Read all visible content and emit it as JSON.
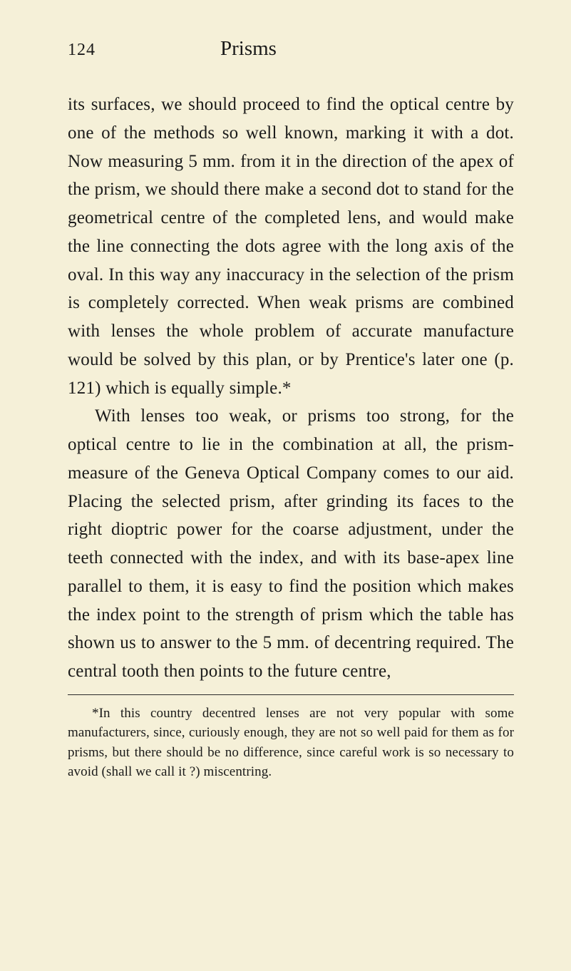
{
  "header": {
    "pageNumber": "124",
    "title": "Prisms"
  },
  "paragraphs": {
    "p1": "its surfaces, we should proceed to find the optical centre by one of the methods so well known, marking it with a dot. Now measuring 5 mm. from it in the direction of the apex of the prism, we should there make a second dot to stand for the geometrical centre of the completed lens, and would make the line connecting the dots agree with the long axis of the oval. In this way any inaccuracy in the selection of the prism is completely corrected. When weak prisms are combined with lenses the whole problem of accurate manufacture would be solved by this plan, or by Prentice's later one (p. 121) which is equally simple.*",
    "p2": "With lenses too weak, or prisms too strong, for the optical centre to lie in the combination at all, the prism-measure of the Geneva Optical Company comes to our aid. Placing the selected prism, after grinding its faces to the right dioptric power for the coarse adjustment, under the teeth connected with the index, and with its base-apex line parallel to them, it is easy to find the position which makes the index point to the strength of prism which the table has shown us to answer to the 5 mm. of decentring required. The central tooth then points to the future centre,"
  },
  "footnote": "*In this country decentred lenses are not very popular with some manufacturers, since, curiously enough, they are not so well paid for them as for prisms, but there should be no difference, since careful work is so necessary to avoid (shall we call it ?) miscentring."
}
